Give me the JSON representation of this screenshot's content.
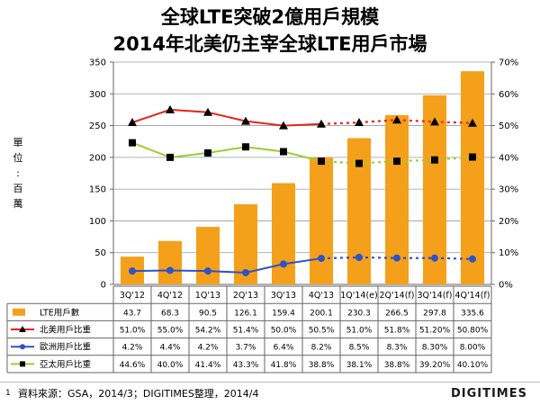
{
  "title_line1": "全球LTE突破2億用戶規模",
  "title_line2": "2014年北美仍主宰全球LTE用戶市場",
  "unit_label": [
    "單",
    "位",
    ":",
    "百",
    "萬"
  ],
  "footer": {
    "page_number": "1",
    "source": "資料來源：GSA，2014/3；DIGITIMES整理，2014/4",
    "brand": "DIGITIMES"
  },
  "colors": {
    "bar": "#F5A01A",
    "north_america": "#E8241A",
    "europe": "#2F52C8",
    "asia_pacific": "#9ACD32",
    "marker_dark": "#000000"
  },
  "chart_data": {
    "type": "bar",
    "categories": [
      "3Q'12",
      "4Q'12",
      "1Q'13",
      "2Q'13",
      "3Q'13",
      "4Q'13",
      "1Q'14(e)",
      "2Q'14(f)",
      "3Q'14(f)",
      "4Q'14(f)"
    ],
    "left_axis": {
      "ylim": [
        0,
        350
      ],
      "ticks": [
        "0",
        "50",
        "100",
        "150",
        "200",
        "250",
        "300",
        "350"
      ]
    },
    "right_axis": {
      "ylim": [
        0,
        70
      ],
      "ticks": [
        "0%",
        "10%",
        "20%",
        "30%",
        "40%",
        "50%",
        "60%",
        "70%"
      ]
    },
    "forecast_from_index": 5,
    "series": [
      {
        "name": "LTE用戶數",
        "type": "bar",
        "axis": "left",
        "values": [
          43.7,
          68.3,
          90.5,
          126.1,
          159.4,
          200.1,
          230.3,
          266.5,
          297.8,
          335.6
        ],
        "labels": [
          "43.7",
          "68.3",
          "90.5",
          "126.1",
          "159.4",
          "200.1",
          "230.3",
          "266.5",
          "297.8",
          "335.6"
        ]
      },
      {
        "name": "北美用戶比重",
        "type": "line",
        "axis": "right",
        "marker": "triangle",
        "values": [
          51.0,
          55.0,
          54.2,
          51.4,
          50.0,
          50.5,
          51.0,
          51.8,
          51.2,
          50.8
        ],
        "labels": [
          "51.0%",
          "55.0%",
          "54.2%",
          "51.4%",
          "50.0%",
          "50.5%",
          "51.0%",
          "51.8%",
          "51.20%",
          "50.80%"
        ]
      },
      {
        "name": "歐洲用戶比重",
        "type": "line",
        "axis": "right",
        "marker": "circle",
        "values": [
          4.2,
          4.4,
          4.2,
          3.7,
          6.4,
          8.2,
          8.5,
          8.3,
          8.3,
          8.0
        ],
        "labels": [
          "4.2%",
          "4.4%",
          "4.2%",
          "3.7%",
          "6.4%",
          "8.2%",
          "8.5%",
          "8.3%",
          "8.30%",
          "8.00%"
        ]
      },
      {
        "name": "亞太用戶比重",
        "type": "line",
        "axis": "right",
        "marker": "square",
        "values": [
          44.6,
          40.0,
          41.4,
          43.3,
          41.8,
          38.8,
          38.1,
          38.8,
          39.2,
          40.1
        ],
        "labels": [
          "44.6%",
          "40.0%",
          "41.4%",
          "43.3%",
          "41.8%",
          "38.8%",
          "38.1%",
          "38.8%",
          "39.20%",
          "40.10%"
        ]
      }
    ]
  }
}
